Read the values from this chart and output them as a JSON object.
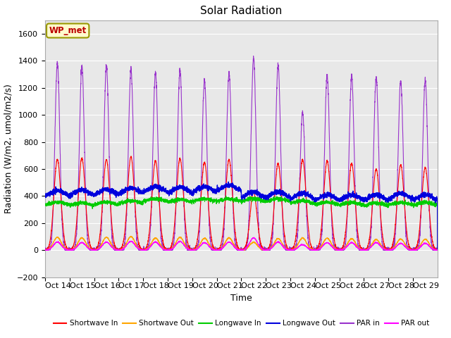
{
  "title": "Solar Radiation",
  "ylabel": "Radiation (W/m2, umol/m2/s)",
  "xlabel": "Time",
  "ylim": [
    -200,
    1700
  ],
  "yticks": [
    -200,
    0,
    200,
    400,
    600,
    800,
    1000,
    1200,
    1400,
    1600
  ],
  "annotation": "WP_met",
  "annotation_color": "#BB0000",
  "annotation_bg": "#FFFACD",
  "n_days": 16,
  "points_per_day": 288,
  "series_colors": {
    "shortwave_in": "#FF0000",
    "shortwave_out": "#FFA500",
    "longwave_in": "#00CC00",
    "longwave_out": "#0000DD",
    "par_in": "#9933CC",
    "par_out": "#FF00FF"
  },
  "legend_labels": [
    "Shortwave In",
    "Shortwave Out",
    "Longwave In",
    "Longwave Out",
    "PAR in",
    "PAR out"
  ],
  "xtick_labels": [
    "Oct 14",
    "Oct 15",
    "Oct 16",
    "Oct 17",
    "Oct 18",
    "Oct 19",
    "Oct 20",
    "Oct 21",
    "Oct 22",
    "Oct 23",
    "Oct 24",
    "Oct 25",
    "Oct 26",
    "Oct 27",
    "Oct 28",
    "Oct 29"
  ],
  "bg_color": "#E8E8E8",
  "title_fontsize": 11,
  "axis_fontsize": 9,
  "tick_fontsize": 8,
  "sw_in_peaks": [
    670,
    680,
    670,
    690,
    660,
    680,
    650,
    670,
    430,
    640,
    670,
    660,
    640,
    600,
    630,
    610
  ],
  "sw_out_peaks": [
    95,
    90,
    95,
    100,
    90,
    95,
    88,
    90,
    58,
    85,
    90,
    88,
    85,
    78,
    82,
    80
  ],
  "lw_in_base": [
    330,
    325,
    330,
    340,
    355,
    350,
    355,
    355,
    355,
    355,
    340,
    330,
    328,
    322,
    328,
    328
  ],
  "lw_out_base": [
    385,
    390,
    395,
    405,
    415,
    410,
    415,
    425,
    375,
    375,
    365,
    355,
    355,
    355,
    365,
    355
  ],
  "par_in_peaks": [
    1380,
    1360,
    1365,
    1335,
    1310,
    1330,
    1255,
    1310,
    1420,
    1370,
    1020,
    1290,
    1285,
    1275,
    1250,
    1255
  ],
  "par_out_peaks": [
    60,
    55,
    60,
    65,
    60,
    65,
    55,
    60,
    90,
    60,
    40,
    55,
    55,
    55,
    50,
    50
  ]
}
